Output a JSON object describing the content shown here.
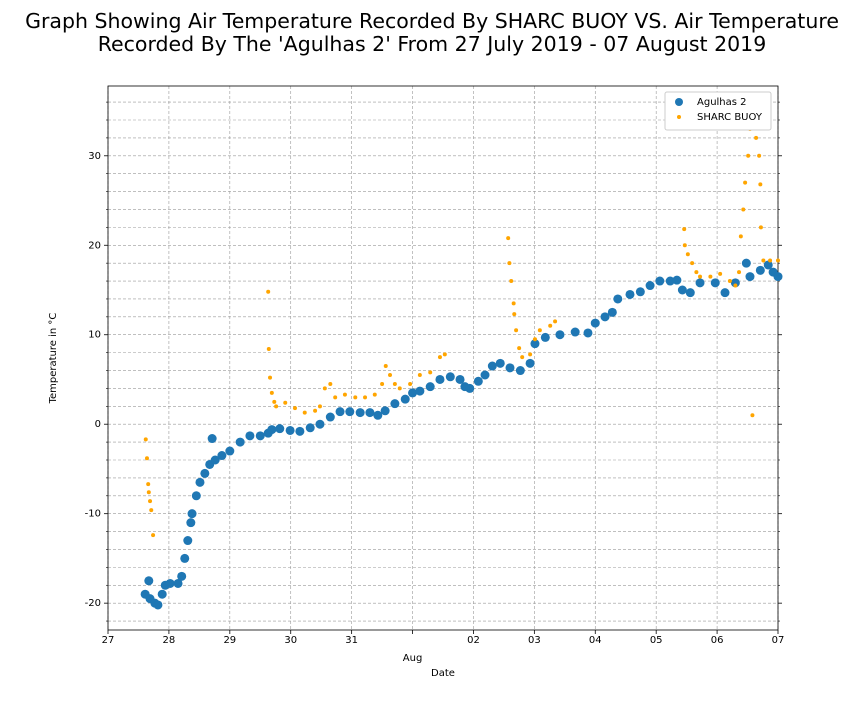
{
  "chart_data": {
    "type": "scatter",
    "title": "Graph Showing Air Temperature Recorded By SHARC BUOY VS. Air Temperature Recorded By The 'Agulhas 2' From 27 July 2019 - 07 August 2019",
    "xlabel": "Date",
    "ylabel": "Temperature in °C",
    "xlim": [
      0,
      11
    ],
    "ylim": [
      -23,
      37.8
    ],
    "xticks": [
      {
        "value": 0,
        "label": "27"
      },
      {
        "value": 1,
        "label": "28"
      },
      {
        "value": 2,
        "label": "29"
      },
      {
        "value": 3,
        "label": "30"
      },
      {
        "value": 4,
        "label": "31"
      },
      {
        "value": 5,
        "label": "Aug"
      },
      {
        "value": 6,
        "label": "02"
      },
      {
        "value": 7,
        "label": "03"
      },
      {
        "value": 8,
        "label": "04"
      },
      {
        "value": 9,
        "label": "05"
      },
      {
        "value": 10,
        "label": "06"
      },
      {
        "value": 11,
        "label": "07"
      }
    ],
    "yticks": [
      -20,
      -10,
      0,
      10,
      20,
      30
    ],
    "y_minor_ticks": [
      -22,
      -18,
      -16,
      -14,
      -12,
      -8,
      -6,
      -4,
      -2,
      2,
      4,
      6,
      8,
      12,
      14,
      16,
      18,
      22,
      24,
      26,
      28,
      32,
      34,
      36
    ],
    "grid": true,
    "legend": "upper right",
    "series": [
      {
        "name": "Agulhas 2",
        "color": "#1f77b4",
        "size": 4.5,
        "x": [
          0.61,
          0.67,
          0.69,
          0.77,
          0.82,
          0.89,
          0.94,
          1.02,
          1.15,
          1.21,
          1.26,
          1.31,
          1.36,
          1.38,
          1.45,
          1.51,
          1.59,
          1.67,
          1.71,
          1.76,
          1.87,
          2.0,
          2.17,
          2.33,
          2.5,
          2.63,
          2.69,
          2.82,
          2.99,
          3.15,
          3.32,
          3.48,
          3.65,
          3.81,
          3.97,
          4.14,
          4.3,
          4.43,
          4.55,
          4.71,
          4.88,
          5.0,
          5.12,
          5.29,
          5.45,
          5.62,
          5.78,
          5.86,
          5.94,
          6.08,
          6.19,
          6.31,
          6.44,
          6.6,
          6.77,
          6.93,
          7.01,
          7.18,
          7.42,
          7.67,
          7.88,
          8.0,
          8.16,
          8.28,
          8.37,
          8.57,
          8.74,
          8.9,
          9.06,
          9.23,
          9.34,
          9.43,
          9.56,
          9.72,
          9.97,
          10.13,
          10.3,
          10.48,
          10.54,
          10.71,
          10.84,
          10.92,
          11.0
        ],
        "values": [
          -19,
          -17.5,
          -19.5,
          -20,
          -20.2,
          -19,
          -18,
          -17.8,
          -17.8,
          -17,
          -15,
          -13,
          -11,
          -10,
          -8,
          -6.5,
          -5.5,
          -4.5,
          -1.6,
          -4,
          -3.5,
          -3,
          -2,
          -1.3,
          -1.3,
          -1,
          -0.6,
          -0.5,
          -0.7,
          -0.8,
          -0.4,
          0,
          0.8,
          1.4,
          1.4,
          1.3,
          1.3,
          1.0,
          1.5,
          2.3,
          2.8,
          3.5,
          3.7,
          4.2,
          5.0,
          5.3,
          5.0,
          4.2,
          4.0,
          4.8,
          5.5,
          6.5,
          6.8,
          6.3,
          6.0,
          6.8,
          9,
          9.7,
          10,
          10.3,
          10.2,
          11.3,
          12,
          12.5,
          14,
          14.5,
          14.8,
          15.5,
          16,
          16,
          16.1,
          15,
          14.7,
          15.8,
          15.8,
          14.7,
          15.8,
          18,
          16.5,
          17.2,
          17.8,
          17,
          16.5
        ]
      },
      {
        "name": "SHARC BUOY",
        "color": "#ffa500",
        "size": 2,
        "x": [
          0.62,
          0.64,
          0.66,
          0.67,
          0.69,
          0.71,
          0.74,
          2.63,
          2.64,
          2.66,
          2.69,
          2.73,
          2.76,
          2.91,
          3.07,
          3.23,
          3.4,
          3.48,
          3.56,
          3.65,
          3.73,
          3.89,
          4.06,
          4.22,
          4.38,
          4.5,
          4.56,
          4.63,
          4.71,
          4.79,
          4.96,
          5.12,
          5.29,
          5.45,
          5.53,
          6.57,
          6.59,
          6.62,
          6.66,
          6.67,
          6.7,
          6.75,
          6.8,
          6.93,
          7.01,
          7.09,
          7.26,
          7.34,
          9.46,
          9.47,
          9.52,
          9.59,
          9.66,
          9.72,
          9.89,
          10.05,
          10.21,
          10.3,
          10.36,
          10.39,
          10.43,
          10.46,
          10.51,
          10.54,
          10.58,
          10.58,
          10.64,
          10.69,
          10.71,
          10.72,
          10.76,
          10.87,
          11.0
        ],
        "values": [
          -1.7,
          -3.8,
          -6.7,
          -7.6,
          -8.6,
          -9.6,
          -12.4,
          14.8,
          8.4,
          5.2,
          3.5,
          2.5,
          2.0,
          2.4,
          1.8,
          1.3,
          1.5,
          2.0,
          4.0,
          4.5,
          3.0,
          3.3,
          3.0,
          3.0,
          3.3,
          4.5,
          6.5,
          5.5,
          4.5,
          4.0,
          4.5,
          5.5,
          5.8,
          7.5,
          7.8,
          20.8,
          18,
          16,
          13.5,
          12.3,
          10.5,
          8.5,
          7.5,
          7.8,
          9.5,
          10.5,
          11,
          11.5,
          21.8,
          20,
          19,
          18,
          17,
          16.5,
          16.5,
          16.8,
          16,
          15.5,
          17,
          21,
          24,
          27,
          30,
          33,
          34,
          1.0,
          32,
          30,
          26.8,
          22,
          18.3,
          18.3,
          18.3
        ]
      }
    ]
  }
}
